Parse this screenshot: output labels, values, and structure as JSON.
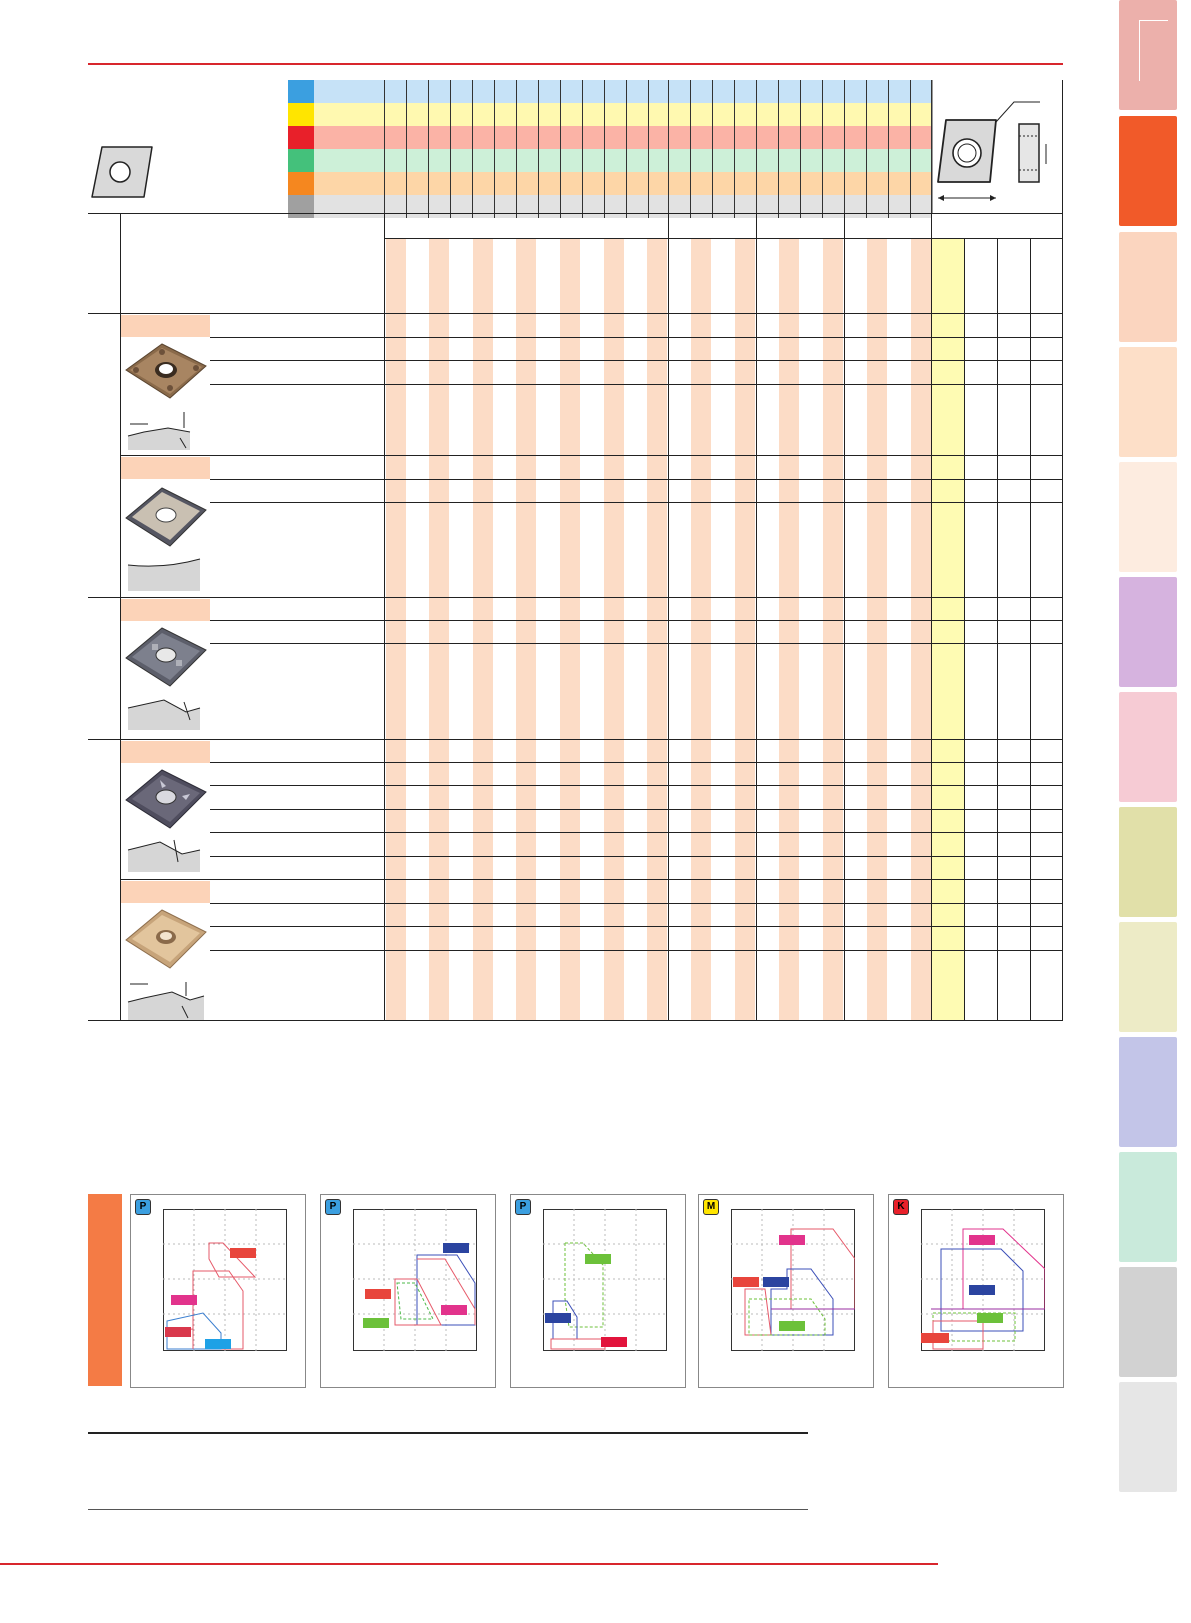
{
  "colors": {
    "accent_red": "#d8262d",
    "stripe_peach": "#fcdcc6",
    "highlight_yellow": "#fefbb3",
    "section_orange": "#f47b45"
  },
  "grade_rows": [
    {
      "iso": "P",
      "swatch": "#3b9fe0",
      "band": "#c6e2f7"
    },
    {
      "iso": "M",
      "swatch": "#ffe500",
      "band": "#fff9b0"
    },
    {
      "iso": "K",
      "swatch": "#e8202a",
      "band": "#fbb3a6"
    },
    {
      "iso": "N",
      "swatch": "#44c17b",
      "band": "#cdf0d8"
    },
    {
      "iso": "S",
      "swatch": "#f5871f",
      "band": "#fdd6a7"
    },
    {
      "iso": "H",
      "swatch": "#a0a0a0",
      "band": "#e2e2e2"
    }
  ],
  "side_tabs": [
    {
      "color": "#ecb0ab",
      "icon": "tab-turning"
    },
    {
      "color": "#f15a29",
      "icon": "tab-inserts-active"
    },
    {
      "color": "#fbd5bf",
      "icon": "tab-2"
    },
    {
      "color": "#fddfc8",
      "icon": "tab-3"
    },
    {
      "color": "#fdece0",
      "icon": "tab-4"
    },
    {
      "color": "#d6b3df",
      "icon": "tab-5"
    },
    {
      "color": "#f6cbd4",
      "icon": "tab-6"
    },
    {
      "color": "#e1e0a9",
      "icon": "tab-7"
    },
    {
      "color": "#edebc6",
      "icon": "tab-8"
    },
    {
      "color": "#c3c5e8",
      "icon": "tab-9"
    },
    {
      "color": "#c9eadb",
      "icon": "tab-10"
    },
    {
      "color": "#d2d2d2",
      "icon": "tab-11"
    },
    {
      "color": "#e6e6e6",
      "icon": "tab-12"
    }
  ],
  "charts": [
    {
      "badge": "P",
      "badge_color": "#3b9fe0"
    },
    {
      "badge": "P",
      "badge_color": "#3b9fe0"
    },
    {
      "badge": "P",
      "badge_color": "#3b9fe0"
    },
    {
      "badge": "M",
      "badge_color": "#ffe500"
    },
    {
      "badge": "K",
      "badge_color": "#e8202a"
    }
  ]
}
